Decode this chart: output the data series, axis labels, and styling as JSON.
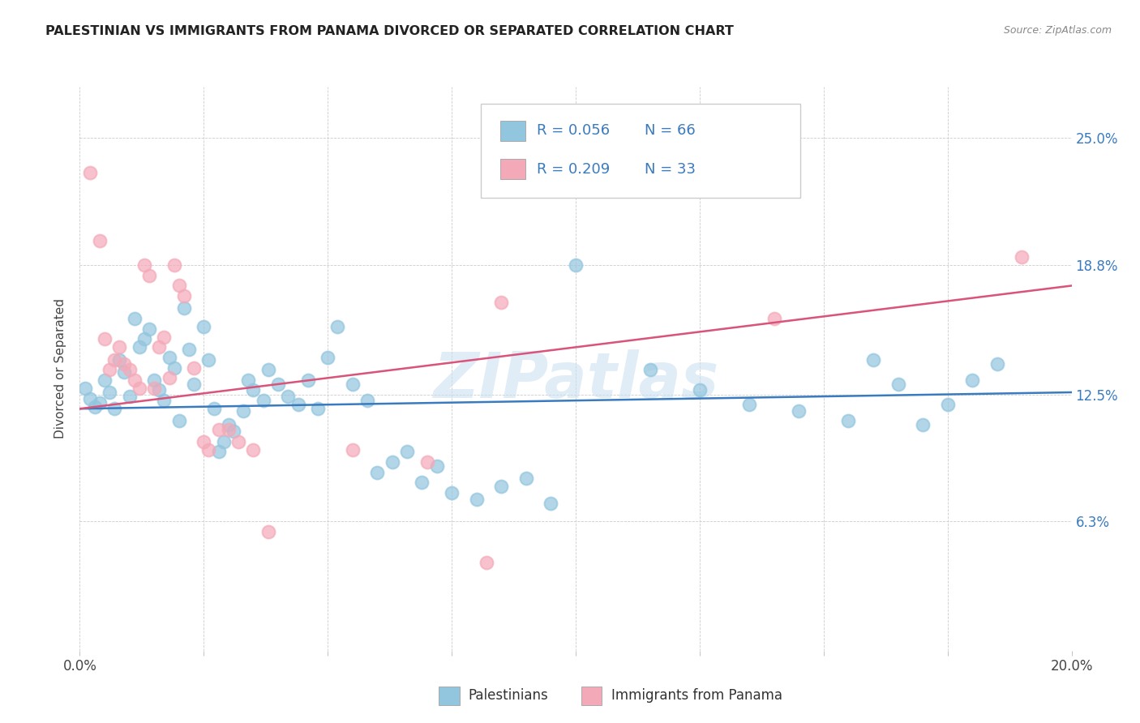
{
  "title": "PALESTINIAN VS IMMIGRANTS FROM PANAMA DIVORCED OR SEPARATED CORRELATION CHART",
  "source": "Source: ZipAtlas.com",
  "ylabel": "Divorced or Separated",
  "blue_color": "#92c5de",
  "pink_color": "#f4a9b8",
  "blue_line_color": "#3a7bbf",
  "pink_line_color": "#d9537a",
  "legend_text_color": "#3a7bbf",
  "watermark": "ZIPatlas",
  "blue_scatter": [
    [
      0.001,
      0.128
    ],
    [
      0.002,
      0.123
    ],
    [
      0.003,
      0.119
    ],
    [
      0.004,
      0.121
    ],
    [
      0.005,
      0.132
    ],
    [
      0.006,
      0.126
    ],
    [
      0.007,
      0.118
    ],
    [
      0.008,
      0.142
    ],
    [
      0.009,
      0.136
    ],
    [
      0.01,
      0.124
    ],
    [
      0.011,
      0.162
    ],
    [
      0.012,
      0.148
    ],
    [
      0.013,
      0.152
    ],
    [
      0.014,
      0.157
    ],
    [
      0.015,
      0.132
    ],
    [
      0.016,
      0.127
    ],
    [
      0.017,
      0.122
    ],
    [
      0.018,
      0.143
    ],
    [
      0.019,
      0.138
    ],
    [
      0.02,
      0.112
    ],
    [
      0.021,
      0.167
    ],
    [
      0.022,
      0.147
    ],
    [
      0.023,
      0.13
    ],
    [
      0.025,
      0.158
    ],
    [
      0.026,
      0.142
    ],
    [
      0.027,
      0.118
    ],
    [
      0.028,
      0.097
    ],
    [
      0.029,
      0.102
    ],
    [
      0.03,
      0.11
    ],
    [
      0.031,
      0.107
    ],
    [
      0.033,
      0.117
    ],
    [
      0.034,
      0.132
    ],
    [
      0.035,
      0.127
    ],
    [
      0.037,
      0.122
    ],
    [
      0.038,
      0.137
    ],
    [
      0.04,
      0.13
    ],
    [
      0.042,
      0.124
    ],
    [
      0.044,
      0.12
    ],
    [
      0.046,
      0.132
    ],
    [
      0.048,
      0.118
    ],
    [
      0.05,
      0.143
    ],
    [
      0.052,
      0.158
    ],
    [
      0.055,
      0.13
    ],
    [
      0.058,
      0.122
    ],
    [
      0.06,
      0.087
    ],
    [
      0.063,
      0.092
    ],
    [
      0.066,
      0.097
    ],
    [
      0.069,
      0.082
    ],
    [
      0.072,
      0.09
    ],
    [
      0.075,
      0.077
    ],
    [
      0.08,
      0.074
    ],
    [
      0.085,
      0.08
    ],
    [
      0.09,
      0.084
    ],
    [
      0.095,
      0.072
    ],
    [
      0.1,
      0.188
    ],
    [
      0.115,
      0.137
    ],
    [
      0.125,
      0.127
    ],
    [
      0.135,
      0.12
    ],
    [
      0.145,
      0.117
    ],
    [
      0.155,
      0.112
    ],
    [
      0.16,
      0.142
    ],
    [
      0.165,
      0.13
    ],
    [
      0.17,
      0.11
    ],
    [
      0.175,
      0.12
    ],
    [
      0.18,
      0.132
    ],
    [
      0.185,
      0.14
    ]
  ],
  "pink_scatter": [
    [
      0.002,
      0.233
    ],
    [
      0.004,
      0.2
    ],
    [
      0.005,
      0.152
    ],
    [
      0.006,
      0.137
    ],
    [
      0.007,
      0.142
    ],
    [
      0.008,
      0.148
    ],
    [
      0.009,
      0.14
    ],
    [
      0.01,
      0.137
    ],
    [
      0.011,
      0.132
    ],
    [
      0.012,
      0.128
    ],
    [
      0.013,
      0.188
    ],
    [
      0.014,
      0.183
    ],
    [
      0.015,
      0.128
    ],
    [
      0.016,
      0.148
    ],
    [
      0.017,
      0.153
    ],
    [
      0.018,
      0.133
    ],
    [
      0.019,
      0.188
    ],
    [
      0.02,
      0.178
    ],
    [
      0.021,
      0.173
    ],
    [
      0.023,
      0.138
    ],
    [
      0.025,
      0.102
    ],
    [
      0.026,
      0.098
    ],
    [
      0.028,
      0.108
    ],
    [
      0.03,
      0.108
    ],
    [
      0.032,
      0.102
    ],
    [
      0.035,
      0.098
    ],
    [
      0.038,
      0.058
    ],
    [
      0.055,
      0.098
    ],
    [
      0.07,
      0.092
    ],
    [
      0.082,
      0.043
    ],
    [
      0.085,
      0.17
    ],
    [
      0.14,
      0.162
    ],
    [
      0.19,
      0.192
    ]
  ],
  "blue_line_x": [
    0.0,
    0.2
  ],
  "blue_line_y": [
    0.118,
    0.126
  ],
  "pink_line_x": [
    0.0,
    0.2
  ],
  "pink_line_y": [
    0.118,
    0.178
  ],
  "xmin": 0.0,
  "xmax": 0.2,
  "ymin": 0.0,
  "ymax": 0.275,
  "yticks": [
    0.0,
    0.063,
    0.125,
    0.188,
    0.25
  ],
  "ytick_labels_right": [
    "",
    "6.3%",
    "12.5%",
    "18.8%",
    "25.0%"
  ],
  "background_color": "#ffffff"
}
